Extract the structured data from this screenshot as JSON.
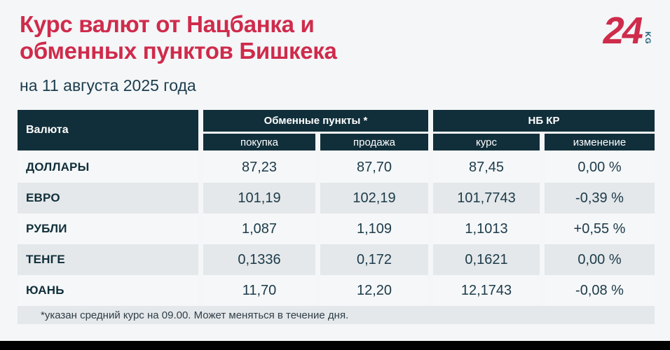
{
  "header": {
    "title_line1": "Курс валют от Нацбанка и",
    "title_line2": "обменных пунктов Бишкека",
    "subtitle": "на 11 августа 2025 года"
  },
  "logo": {
    "number": "24",
    "suffix": "KG"
  },
  "colors": {
    "title": "#cf2b4b",
    "header_bg": "#112f3a",
    "row_alt_bg": "#e4e8ea",
    "page_bg": "#f4f6f8",
    "text": "#1c3a49",
    "logo_red": "#cf2b4b",
    "logo_kg": "#1b5a78"
  },
  "table": {
    "header": {
      "currency": "Валюта",
      "group_exchange": "Обменные пункты *",
      "group_nbkr": "НБ КР",
      "sub_buy": "покупка",
      "sub_sell": "продажа",
      "sub_rate": "курс",
      "sub_change": "изменение"
    },
    "rows": [
      {
        "currency": "ДОЛЛАРЫ",
        "buy": "87,23",
        "sell": "87,70",
        "rate": "87,45",
        "change": "0,00 %"
      },
      {
        "currency": "ЕВРО",
        "buy": "101,19",
        "sell": "102,19",
        "rate": "101,7743",
        "change": "-0,39 %"
      },
      {
        "currency": "РУБЛИ",
        "buy": "1,087",
        "sell": "1,109",
        "rate": "1,1013",
        "change": "+0,55 %"
      },
      {
        "currency": "ТЕНГЕ",
        "buy": "0,1336",
        "sell": "0,172",
        "rate": "0,1621",
        "change": "0,00 %"
      },
      {
        "currency": "ЮАНЬ",
        "buy": "11,70",
        "sell": "12,20",
        "rate": "12,1743",
        "change": "-0,08 %"
      }
    ],
    "footnote": "*указан средний курс на 09.00. Может меняться в течение дня."
  },
  "chart_data": {
    "type": "table",
    "title": "Курс валют от Нацбанка и обменных пунктов Бишкека",
    "subtitle": "на 11 августа 2025 года",
    "columns": [
      "Валюта",
      "Обменные пункты — покупка",
      "Обменные пункты — продажа",
      "НБ КР — курс",
      "НБ КР — изменение, %"
    ],
    "rows": [
      [
        "ДОЛЛАРЫ",
        87.23,
        87.7,
        87.45,
        0.0
      ],
      [
        "ЕВРО",
        101.19,
        102.19,
        101.7743,
        -0.39
      ],
      [
        "РУБЛИ",
        1.087,
        1.109,
        1.1013,
        0.55
      ],
      [
        "ТЕНГЕ",
        0.1336,
        0.172,
        0.1621,
        0.0
      ],
      [
        "ЮАНЬ",
        11.7,
        12.2,
        12.1743,
        -0.08
      ]
    ],
    "footnote": "*указан средний курс на 09.00. Может меняться в течение дня."
  }
}
